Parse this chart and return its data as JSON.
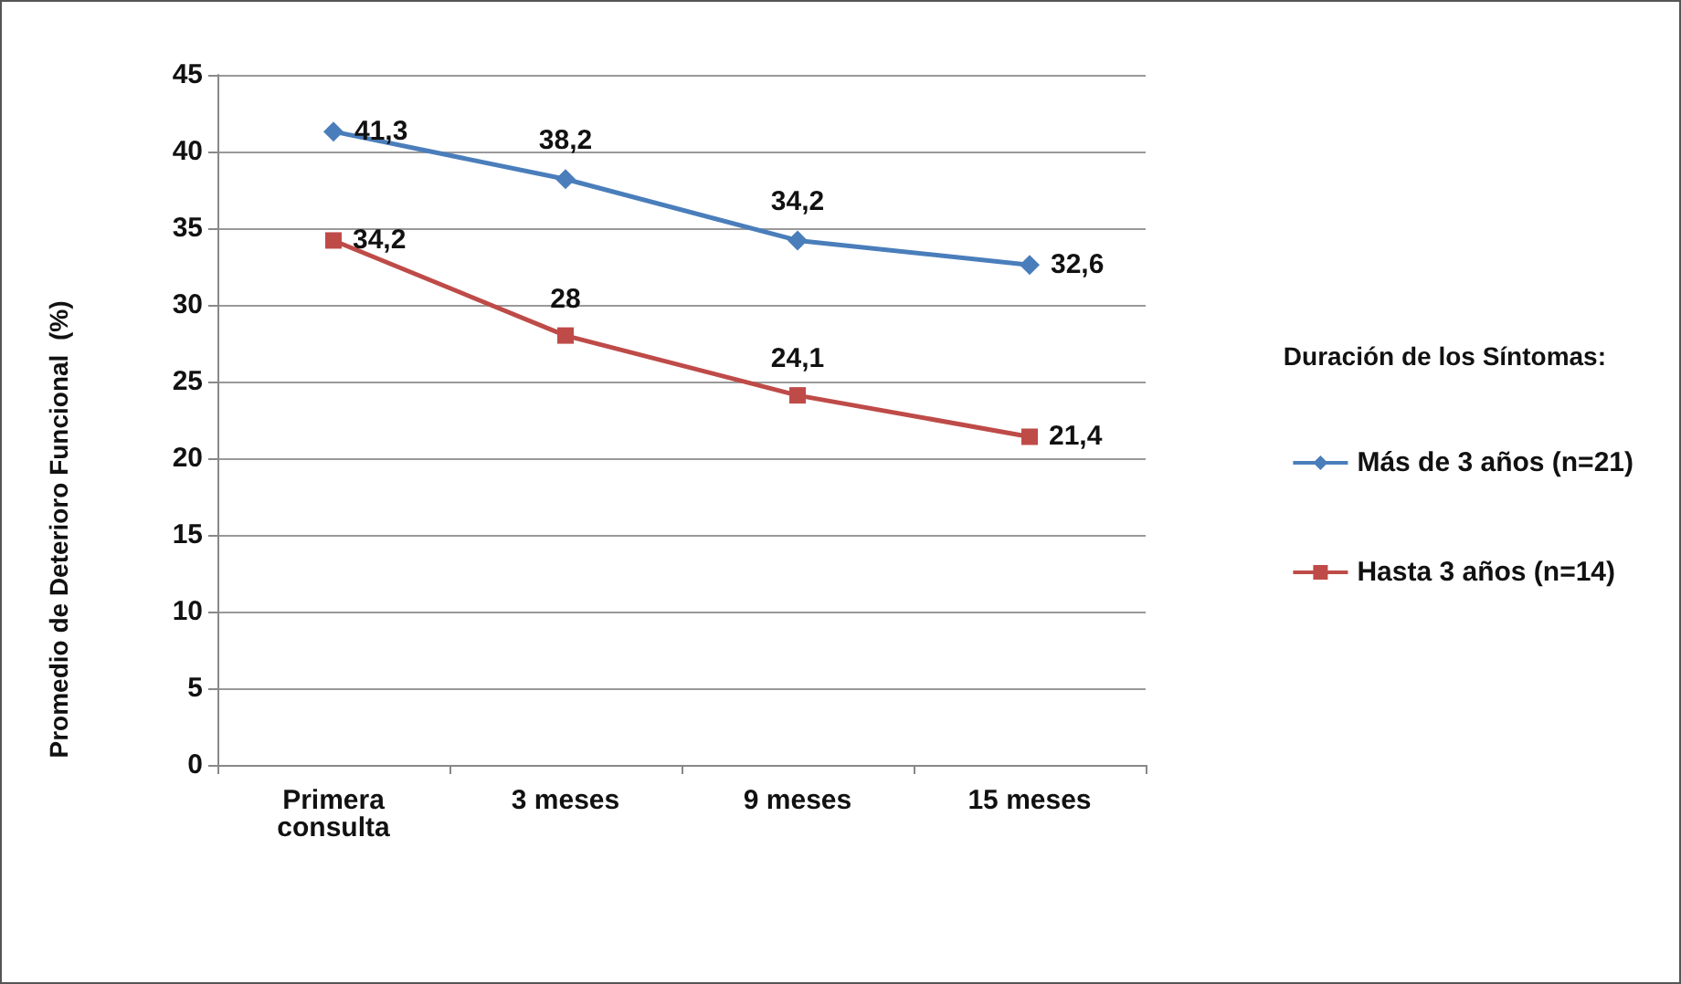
{
  "chart_data": {
    "type": "line",
    "ylabel": "Promedio de Deterioro Funcional  (%)",
    "legend_title": "Duración de los Síntomas:",
    "categories": [
      "Primera\nconsulta",
      "3 meses",
      "9 meses",
      "15 meses"
    ],
    "series": [
      {
        "name": "Más de 3 años (n=21)",
        "color": "#4a7ebb",
        "marker": "diamond",
        "values": [
          41.3,
          38.2,
          34.2,
          32.6
        ],
        "value_labels": [
          "41,3",
          "38,2",
          "34,2",
          "32,6"
        ]
      },
      {
        "name": "Hasta 3 años (n=14)",
        "color": "#be4b48",
        "marker": "square",
        "values": [
          34.2,
          28,
          24.1,
          21.4
        ],
        "value_labels": [
          "34,2",
          "28",
          "24,1",
          "21,4"
        ]
      }
    ],
    "ylim": [
      0,
      45
    ],
    "yticks": [
      0,
      5,
      10,
      15,
      20,
      25,
      30,
      35,
      40,
      45
    ],
    "grid": "y",
    "legend": "right",
    "line_style": "solid"
  }
}
